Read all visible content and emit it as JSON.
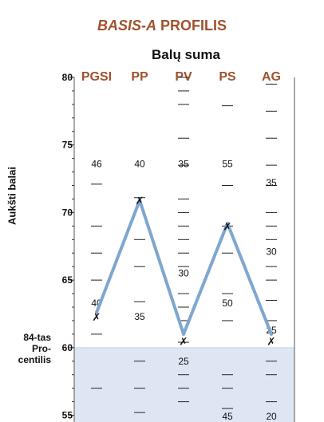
{
  "title": {
    "emph": "BASIS-A",
    "rest": " PROFILIS"
  },
  "chart_data": {
    "type": "line",
    "title": "BASIS-A PROFILIS",
    "subtitle": "Balų suma",
    "ylabel": "Aukšti balai",
    "ylim": [
      55,
      80
    ],
    "yticks": [
      "55",
      "60",
      "65",
      "70",
      "75",
      "80"
    ],
    "categories": [
      "PGSI",
      "PP",
      "PV",
      "PS",
      "AG"
    ],
    "series": [
      {
        "values": [
          62.6,
          70.9,
          61.0,
          69.2,
          61.0
        ],
        "color": "#7ea6d1"
      }
    ],
    "raw_marks": [
      {
        "col": 0,
        "text": "✗",
        "y": 62.3
      },
      {
        "col": 1,
        "text": "✗",
        "y": 70.9
      },
      {
        "col": 2,
        "text": "✗",
        "y": 60.5
      },
      {
        "col": 3,
        "text": "✗",
        "y": 69.0
      },
      {
        "col": 4,
        "text": "✗",
        "y": 60.5
      }
    ],
    "raw_labels": [
      {
        "col": 0,
        "text": "46",
        "y": 73.6
      },
      {
        "col": 0,
        "text": "40",
        "y": 63.3
      },
      {
        "col": 1,
        "text": "40",
        "y": 73.6
      },
      {
        "col": 1,
        "text": "35",
        "y": 62.3
      },
      {
        "col": 2,
        "text": "35",
        "y": 73.6
      },
      {
        "col": 2,
        "text": "30",
        "y": 65.5
      },
      {
        "col": 2,
        "text": "25",
        "y": 59.0
      },
      {
        "col": 3,
        "text": "55",
        "y": 73.6
      },
      {
        "col": 3,
        "text": "50",
        "y": 63.3
      },
      {
        "col": 3,
        "text": "45",
        "y": 54.9
      },
      {
        "col": 4,
        "text": "35",
        "y": 72.2
      },
      {
        "col": 4,
        "text": "30",
        "y": 67.1
      },
      {
        "col": 4,
        "text": "25",
        "y": 61.3
      },
      {
        "col": 4,
        "text": "20",
        "y": 54.9
      }
    ],
    "dashes": [
      [
        72.1,
        69.0,
        67.0,
        65.0,
        61.0,
        57.0
      ],
      [
        71.1,
        68.0,
        66.0,
        63.4,
        59.0,
        57.0,
        55.2
      ],
      [
        80.0,
        79.0,
        78.0,
        75.5,
        73.5,
        71.0,
        70.0,
        69.0,
        68.0,
        67.0,
        66.0,
        64.0,
        63.0,
        62.0,
        60.4,
        58.0,
        57.0,
        56.0
      ],
      [
        77.9,
        72.0,
        69.0,
        67.0,
        64.0,
        62.0,
        58.0,
        57.0,
        55.5
      ],
      [
        79.5,
        77.5,
        75.5,
        73.5,
        72.0,
        70.0,
        69.0,
        68.0,
        66.0,
        65.0,
        63.5,
        62.0,
        59.0,
        58.0,
        56.0
      ]
    ],
    "shade_from": 60,
    "shade_color": "#dfe6f3",
    "header_color": "#a0522d",
    "grid": false,
    "legend": "none"
  },
  "percentile_label": [
    "84-tas",
    "Pro-",
    "centilis"
  ]
}
